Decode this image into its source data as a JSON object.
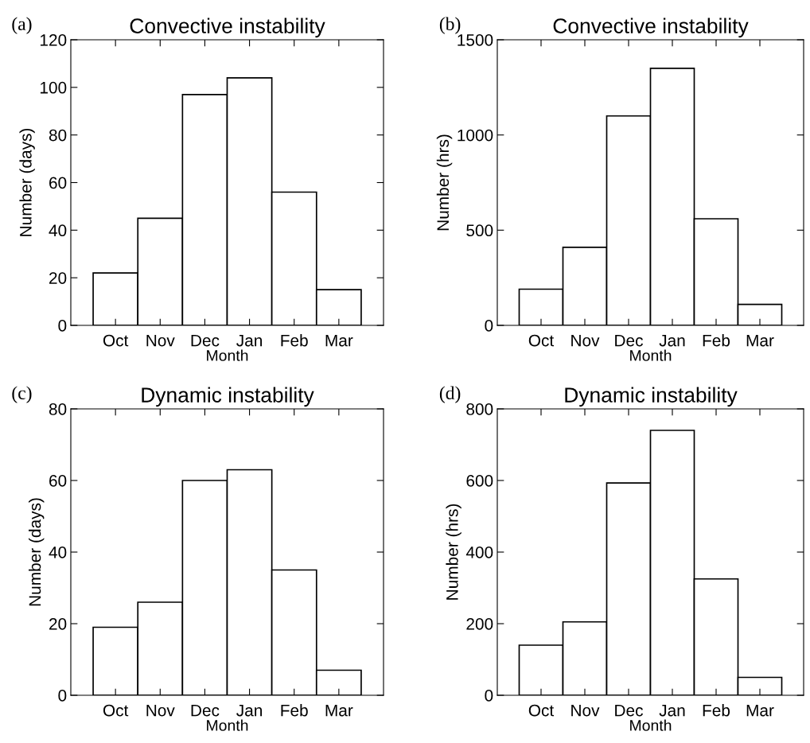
{
  "chart_data": [
    {
      "type": "bar",
      "title": "Convective instability",
      "xlabel": "Month",
      "ylabel": "Number (days)",
      "annotations": [
        "(a)"
      ],
      "categories": [
        "Oct",
        "Nov",
        "Dec",
        "Jan",
        "Feb",
        "Mar"
      ],
      "values": [
        22,
        45,
        97,
        104,
        56,
        15
      ],
      "color": "#ffffff",
      "ylim": [
        0,
        120
      ],
      "yticks": [
        0,
        20,
        40,
        60,
        80,
        100,
        120
      ],
      "grid": false
    },
    {
      "type": "bar",
      "title": "Convective instability",
      "xlabel": "Month",
      "ylabel": "Number (hrs)",
      "annotations": [
        "(b)"
      ],
      "categories": [
        "Oct",
        "Nov",
        "Dec",
        "Jan",
        "Feb",
        "Mar"
      ],
      "values": [
        190,
        410,
        1100,
        1350,
        560,
        110
      ],
      "color": "#ffffff",
      "ylim": [
        0,
        1500
      ],
      "yticks": [
        0,
        500,
        1000,
        1500
      ],
      "grid": false
    },
    {
      "type": "bar",
      "title": "Dynamic instability",
      "xlabel": "Month",
      "ylabel": "Number (days)",
      "annotations": [
        "(c)"
      ],
      "categories": [
        "Oct",
        "Nov",
        "Dec",
        "Jan",
        "Feb",
        "Mar"
      ],
      "values": [
        19,
        26,
        60,
        63,
        35,
        7
      ],
      "color": "#ffffff",
      "ylim": [
        0,
        80
      ],
      "yticks": [
        0,
        20,
        40,
        60,
        80
      ],
      "grid": false
    },
    {
      "type": "bar",
      "title": "Dynamic instability",
      "xlabel": "Month",
      "ylabel": "Number (hrs)",
      "annotations": [
        "(d)"
      ],
      "categories": [
        "Oct",
        "Nov",
        "Dec",
        "Jan",
        "Feb",
        "Mar"
      ],
      "values": [
        140,
        205,
        593,
        740,
        325,
        50
      ],
      "color": "#ffffff",
      "ylim": [
        0,
        800
      ],
      "yticks": [
        0,
        200,
        400,
        600,
        800
      ],
      "grid": false
    }
  ]
}
